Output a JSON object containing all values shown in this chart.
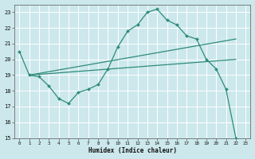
{
  "xlabel": "Humidex (Indice chaleur)",
  "xlim": [
    -0.5,
    23.5
  ],
  "ylim": [
    15,
    23.5
  ],
  "yticks": [
    15,
    16,
    17,
    18,
    19,
    20,
    21,
    22,
    23
  ],
  "xticks": [
    0,
    1,
    2,
    3,
    4,
    5,
    6,
    7,
    8,
    9,
    10,
    11,
    12,
    13,
    14,
    15,
    16,
    17,
    18,
    19,
    20,
    21,
    22,
    23
  ],
  "bg_color": "#cce8ec",
  "grid_color": "#ffffff",
  "line_color": "#2e8b7a",
  "line1_x": [
    0,
    1,
    2,
    3,
    4,
    5,
    6,
    7,
    8,
    9,
    10,
    11,
    12,
    13,
    14,
    15,
    16,
    17,
    18,
    19,
    20,
    21,
    22
  ],
  "line1_y": [
    20.5,
    19.0,
    18.9,
    18.3,
    17.5,
    17.2,
    17.9,
    18.1,
    18.4,
    19.4,
    20.8,
    21.8,
    22.2,
    23.0,
    23.2,
    22.5,
    22.2,
    21.5,
    21.3,
    20.0,
    19.4,
    18.1,
    15.0
  ],
  "line2_x": [
    1,
    22
  ],
  "line2_y": [
    19.0,
    21.3
  ],
  "line3_x": [
    1,
    22
  ],
  "line3_y": [
    19.0,
    20.0
  ]
}
